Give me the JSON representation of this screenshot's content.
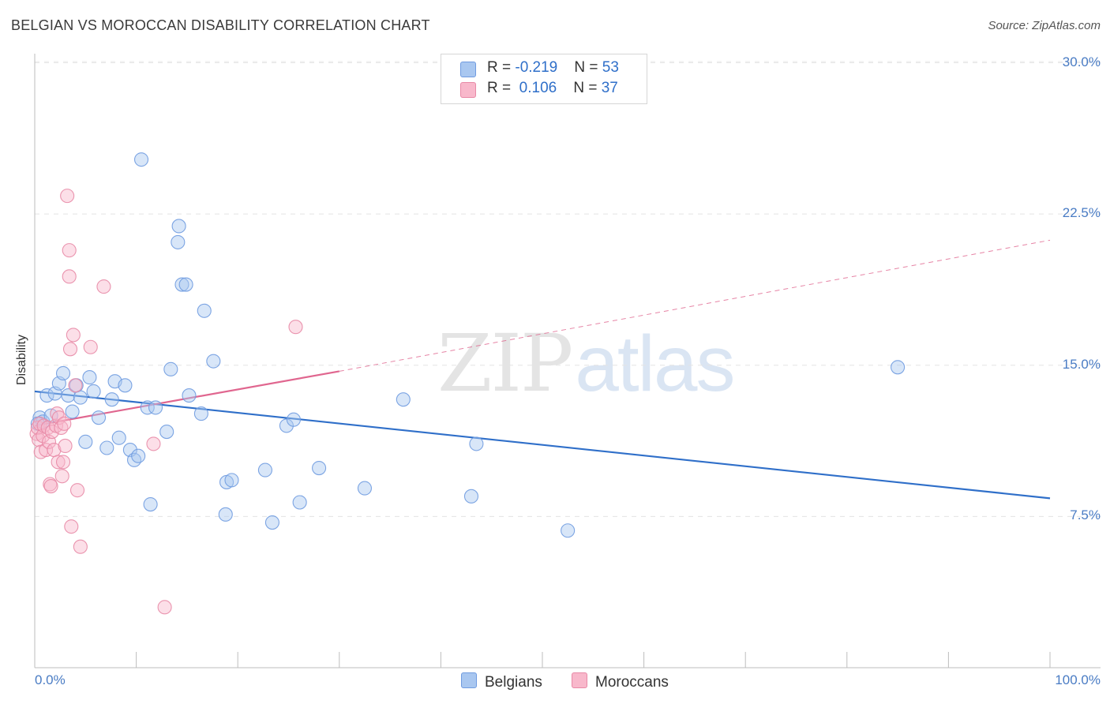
{
  "title": "BELGIAN VS MOROCCAN DISABILITY CORRELATION CHART",
  "source": "Source: ZipAtlas.com",
  "watermark": {
    "zip": "ZIP",
    "atlas": "atlas"
  },
  "legend": {
    "rows": [
      {
        "r_label": "R = ",
        "r_value": "-0.219",
        "n_label": "N = ",
        "n_value": "53",
        "color": "#a9c7f0",
        "stroke": "#6f9be0"
      },
      {
        "r_label": "R = ",
        "r_value": "0.106",
        "n_label": "N = ",
        "n_value": "37",
        "color": "#f8b8cb",
        "stroke": "#e889a6"
      }
    ],
    "series_labels": [
      "Belgians",
      "Moroccans"
    ]
  },
  "axis_labels": {
    "x_min": "0.0%",
    "x_max": "100.0%",
    "y_ticks": [
      "7.5%",
      "15.0%",
      "22.5%",
      "30.0%"
    ]
  },
  "chart_data": {
    "type": "scatter",
    "title": "BELGIAN VS MOROCCAN DISABILITY CORRELATION CHART",
    "xlabel": "",
    "ylabel": "Disability",
    "xlim": [
      0,
      100
    ],
    "ylim": [
      0,
      30.5
    ],
    "y_ticks": [
      7.5,
      15.0,
      22.5,
      30.0
    ],
    "grid": true,
    "series": [
      {
        "name": "Belgians",
        "color": "#6f9be0",
        "fill": "#a9c7f0",
        "trend": {
          "x": [
            0,
            100
          ],
          "y": [
            13.7,
            8.4
          ],
          "style": "solid",
          "color": "#2f6fc9"
        },
        "points": [
          [
            0.5,
            12.4
          ],
          [
            0.8,
            12.2
          ],
          [
            1.2,
            13.5
          ],
          [
            1.6,
            12.5
          ],
          [
            2.0,
            13.6
          ],
          [
            2.4,
            14.1
          ],
          [
            2.8,
            14.6
          ],
          [
            3.3,
            13.5
          ],
          [
            3.7,
            12.7
          ],
          [
            4.1,
            14.0
          ],
          [
            4.5,
            13.4
          ],
          [
            5.0,
            11.2
          ],
          [
            5.4,
            14.4
          ],
          [
            5.8,
            13.7
          ],
          [
            6.3,
            12.4
          ],
          [
            7.1,
            10.9
          ],
          [
            7.6,
            13.3
          ],
          [
            7.9,
            14.2
          ],
          [
            8.3,
            11.4
          ],
          [
            8.9,
            14.0
          ],
          [
            9.4,
            10.8
          ],
          [
            9.8,
            10.3
          ],
          [
            10.2,
            10.5
          ],
          [
            10.5,
            25.2
          ],
          [
            11.1,
            12.9
          ],
          [
            11.4,
            8.1
          ],
          [
            11.9,
            12.9
          ],
          [
            13.0,
            11.7
          ],
          [
            13.4,
            14.8
          ],
          [
            14.1,
            21.1
          ],
          [
            14.2,
            21.9
          ],
          [
            14.5,
            19.0
          ],
          [
            14.9,
            19.0
          ],
          [
            15.2,
            13.5
          ],
          [
            16.4,
            12.6
          ],
          [
            16.7,
            17.7
          ],
          [
            17.6,
            15.2
          ],
          [
            18.8,
            7.6
          ],
          [
            18.9,
            9.2
          ],
          [
            19.4,
            9.3
          ],
          [
            22.7,
            9.8
          ],
          [
            23.4,
            7.2
          ],
          [
            24.8,
            12.0
          ],
          [
            25.5,
            12.3
          ],
          [
            26.1,
            8.2
          ],
          [
            28.0,
            9.9
          ],
          [
            32.5,
            8.9
          ],
          [
            36.3,
            13.3
          ],
          [
            43.0,
            8.5
          ],
          [
            43.5,
            11.1
          ],
          [
            52.5,
            6.8
          ],
          [
            85.0,
            14.9
          ],
          [
            0.3,
            12.1
          ]
        ]
      },
      {
        "name": "Moroccans",
        "color": "#e889a6",
        "fill": "#f8b8cb",
        "trend": {
          "x": [
            0,
            30,
            100
          ],
          "y": [
            12.0,
            14.7,
            21.2
          ],
          "style": "solid-then-dashed",
          "color": "#e0668f"
        },
        "points": [
          [
            0.2,
            11.6
          ],
          [
            0.3,
            11.9
          ],
          [
            0.4,
            11.3
          ],
          [
            0.5,
            12.1
          ],
          [
            0.6,
            10.7
          ],
          [
            0.8,
            11.5
          ],
          [
            0.9,
            12.0
          ],
          [
            1.1,
            10.8
          ],
          [
            1.3,
            11.9
          ],
          [
            1.4,
            11.2
          ],
          [
            1.5,
            9.1
          ],
          [
            1.6,
            9.0
          ],
          [
            1.7,
            11.7
          ],
          [
            1.9,
            10.8
          ],
          [
            2.1,
            12.0
          ],
          [
            2.2,
            12.6
          ],
          [
            2.3,
            10.2
          ],
          [
            2.4,
            12.4
          ],
          [
            2.6,
            11.9
          ],
          [
            2.7,
            9.5
          ],
          [
            2.8,
            10.2
          ],
          [
            2.9,
            12.1
          ],
          [
            3.0,
            11.0
          ],
          [
            3.2,
            23.4
          ],
          [
            3.4,
            20.7
          ],
          [
            3.4,
            19.4
          ],
          [
            3.5,
            15.8
          ],
          [
            3.6,
            7.0
          ],
          [
            3.8,
            16.5
          ],
          [
            4.0,
            14.0
          ],
          [
            4.2,
            8.8
          ],
          [
            4.5,
            6.0
          ],
          [
            5.5,
            15.9
          ],
          [
            6.8,
            18.9
          ],
          [
            11.7,
            11.1
          ],
          [
            12.8,
            3.0
          ],
          [
            25.7,
            16.9
          ]
        ]
      }
    ]
  }
}
